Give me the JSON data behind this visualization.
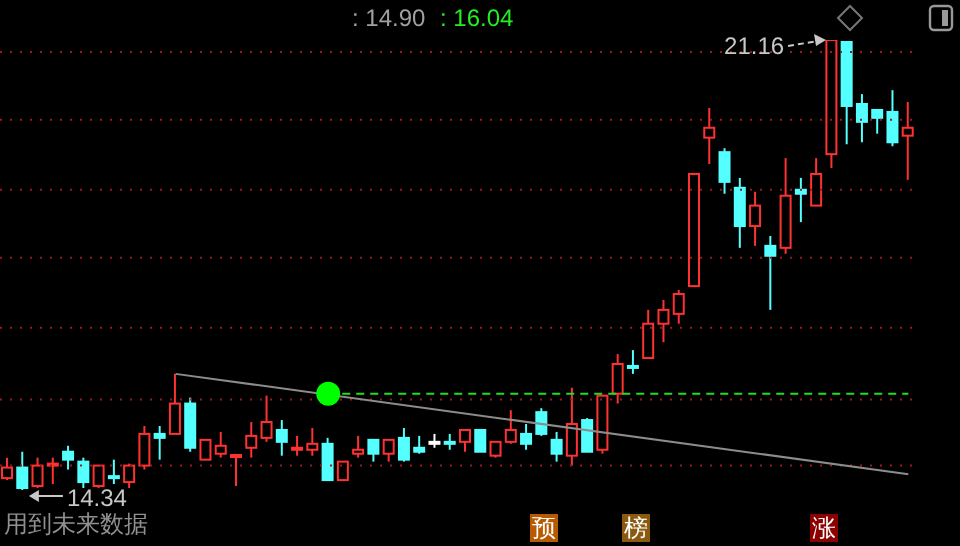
{
  "chart_data": {
    "type": "candlestick",
    "categories": [
      null,
      null,
      null,
      null,
      null,
      null,
      null,
      null,
      null,
      null,
      null,
      null,
      null,
      null,
      null,
      null,
      null,
      null,
      null,
      null,
      null,
      null,
      null,
      null,
      null,
      null,
      null,
      null,
      null,
      null,
      null,
      null,
      null,
      null,
      null,
      null,
      null,
      null,
      null,
      null,
      null,
      null,
      null,
      null,
      null,
      null,
      null,
      null,
      null,
      null,
      null,
      null,
      null,
      null,
      null,
      null,
      null,
      null,
      null,
      null
    ],
    "ohlc": [
      [
        14.52,
        14.83,
        14.49,
        14.68
      ],
      [
        14.68,
        14.92,
        14.34,
        14.37
      ],
      [
        14.4,
        14.83,
        14.37,
        14.71
      ],
      [
        14.71,
        14.83,
        14.43,
        14.74
      ],
      [
        14.92,
        15.01,
        14.65,
        14.8
      ],
      [
        14.77,
        14.83,
        14.37,
        14.46
      ],
      [
        14.4,
        14.71,
        14.37,
        14.71
      ],
      [
        14.55,
        14.8,
        14.43,
        14.52
      ],
      [
        14.46,
        14.74,
        14.37,
        14.71
      ],
      [
        14.71,
        15.31,
        14.65,
        15.19
      ],
      [
        15.19,
        15.31,
        14.8,
        15.13
      ],
      [
        15.19,
        16.1,
        15.19,
        15.65
      ],
      [
        15.65,
        15.74,
        14.92,
        14.98
      ],
      [
        14.8,
        15.1,
        14.8,
        15.1
      ],
      [
        14.89,
        15.22,
        14.83,
        15.01
      ],
      [
        14.86,
        14.87,
        14.4,
        14.87
      ],
      [
        14.98,
        15.37,
        14.83,
        15.16
      ],
      [
        15.13,
        15.77,
        15.07,
        15.37
      ],
      [
        15.25,
        15.4,
        14.86,
        15.07
      ],
      [
        14.95,
        15.16,
        14.86,
        14.98
      ],
      [
        14.95,
        15.28,
        14.86,
        15.04
      ],
      [
        15.04,
        15.13,
        14.49,
        14.49
      ],
      [
        14.49,
        14.77,
        14.49,
        14.77
      ],
      [
        14.89,
        15.16,
        14.83,
        14.95
      ],
      [
        15.1,
        15.1,
        14.77,
        14.89
      ],
      [
        14.89,
        15.1,
        14.77,
        15.1
      ],
      [
        15.13,
        15.28,
        14.77,
        14.8
      ],
      [
        14.98,
        15.16,
        14.89,
        14.92
      ],
      [
        15.07,
        15.19,
        14.98,
        15.07
      ],
      [
        15.07,
        15.19,
        14.95,
        15.04
      ],
      [
        15.07,
        15.25,
        14.92,
        15.25
      ],
      [
        15.25,
        15.25,
        14.92,
        14.92
      ],
      [
        14.86,
        15.07,
        14.83,
        15.07
      ],
      [
        15.07,
        15.55,
        15.04,
        15.25
      ],
      [
        15.19,
        15.34,
        14.95,
        15.04
      ],
      [
        15.52,
        15.58,
        15.16,
        15.19
      ],
      [
        15.1,
        15.22,
        14.77,
        14.89
      ],
      [
        14.86,
        15.89,
        14.71,
        15.34
      ],
      [
        15.4,
        15.43,
        14.92,
        14.92
      ],
      [
        14.95,
        15.77,
        14.89,
        15.77
      ],
      [
        15.8,
        16.4,
        15.65,
        16.25
      ],
      [
        16.22,
        16.46,
        16.1,
        16.19
      ],
      [
        16.34,
        17.07,
        16.34,
        16.86
      ],
      [
        16.86,
        17.22,
        16.58,
        17.07
      ],
      [
        17.01,
        17.37,
        16.86,
        17.31
      ],
      [
        17.43,
        19.13,
        17.43,
        19.13
      ],
      [
        19.68,
        20.13,
        19.28,
        19.83
      ],
      [
        19.46,
        19.52,
        18.83,
        19.01
      ],
      [
        18.92,
        19.07,
        18.01,
        18.34
      ],
      [
        18.34,
        18.86,
        18.04,
        18.65
      ],
      [
        18.04,
        18.19,
        17.07,
        17.89
      ],
      [
        18.01,
        19.37,
        17.92,
        18.8
      ],
      [
        18.89,
        19.07,
        18.4,
        18.83
      ],
      [
        18.65,
        19.37,
        18.65,
        19.13
      ],
      [
        19.43,
        21.16,
        19.22,
        21.16
      ],
      [
        21.13,
        21.13,
        19.58,
        20.16
      ],
      [
        20.19,
        20.34,
        19.61,
        19.92
      ],
      [
        20.1,
        20.1,
        19.74,
        19.98
      ],
      [
        20.07,
        20.4,
        19.55,
        19.61
      ],
      [
        19.71,
        20.22,
        19.04,
        19.83
      ]
    ],
    "colors": [
      "#ff3232",
      "#54ffff",
      "#ff3232",
      "#ff3232",
      "#54ffff",
      "#54ffff",
      "#ff3232",
      "#54ffff",
      "#ff3232",
      "#ff3232",
      "#54ffff",
      "#ff3232",
      "#54ffff",
      "#ff3232",
      "#ff3232",
      "#ff3232",
      "#ff3232",
      "#ff3232",
      "#54ffff",
      "#ff3232",
      "#ff3232",
      "#54ffff",
      "#ff3232",
      "#ff3232",
      "#54ffff",
      "#ff3232",
      "#54ffff",
      "#54ffff",
      "#ffffff",
      "#54ffff",
      "#ff3232",
      "#54ffff",
      "#ff3232",
      "#ff3232",
      "#54ffff",
      "#54ffff",
      "#54ffff",
      "#ff3232",
      "#54ffff",
      "#ff3232",
      "#ff3232",
      "#54ffff",
      "#ff3232",
      "#ff3232",
      "#ff3232",
      "#ff3232",
      "#ff3232",
      "#54ffff",
      "#54ffff",
      "#ff3232",
      "#54ffff",
      "#ff3232",
      "#54ffff",
      "#ff3232",
      "#ff3232",
      "#54ffff",
      "#54ffff",
      "#54ffff",
      "#54ffff",
      "#ff3232"
    ],
    "series": [
      {
        "type": "line",
        "color": "#8c8c8c",
        "values": [
          null,
          null,
          null,
          null,
          null,
          null,
          null,
          null,
          null,
          null,
          null,
          16.1,
          null,
          null,
          null,
          null,
          null,
          null,
          null,
          null,
          null,
          null,
          null,
          null,
          null,
          null,
          null,
          null,
          null,
          null,
          null,
          null,
          null,
          null,
          null,
          null,
          null,
          null,
          null,
          null,
          null,
          null,
          null,
          null,
          null,
          null,
          null,
          null,
          null,
          null,
          null,
          null,
          null,
          null,
          null,
          null,
          null,
          null,
          null,
          14.58
        ]
      },
      {
        "type": "line",
        "color": "#22dd22",
        "line_style": "dashed",
        "values": [
          null,
          null,
          null,
          null,
          null,
          null,
          null,
          null,
          null,
          null,
          null,
          null,
          null,
          null,
          null,
          null,
          null,
          null,
          null,
          null,
          null,
          15.8,
          null,
          null,
          null,
          null,
          null,
          null,
          null,
          null,
          null,
          null,
          null,
          null,
          null,
          null,
          null,
          null,
          null,
          null,
          null,
          null,
          null,
          null,
          null,
          null,
          null,
          null,
          null,
          null,
          null,
          null,
          null,
          null,
          null,
          null,
          null,
          null,
          null,
          15.8
        ]
      },
      {
        "type": "scatter",
        "color": "#00ff00",
        "marker": "circle",
        "values": [
          null,
          null,
          null,
          null,
          null,
          null,
          null,
          null,
          null,
          null,
          null,
          null,
          null,
          null,
          null,
          null,
          null,
          null,
          null,
          null,
          null,
          15.8,
          null,
          null,
          null,
          null,
          null,
          null,
          null,
          null,
          null,
          null,
          null,
          null,
          null,
          null,
          null,
          null,
          null,
          null,
          null,
          null,
          null,
          null,
          null,
          null,
          null,
          null,
          null,
          null,
          null,
          null,
          null,
          null,
          null,
          null,
          null,
          null,
          null,
          null
        ]
      }
    ],
    "yticks": [
      {
        "value": 20.98,
        "label": null
      },
      {
        "value": 19.95,
        "label": null
      },
      {
        "value": 18.89,
        "label": null
      },
      {
        "value": 17.86,
        "label": null
      },
      {
        "value": 16.8,
        "label": null
      },
      {
        "value": 15.71,
        "label": null
      },
      {
        "value": 14.71,
        "label": null
      }
    ],
    "grid": "y",
    "tick_labels": false,
    "annotations": [
      ": 14.90",
      ": 16.04",
      "21.16",
      "14.34",
      "用到未来数据",
      "预",
      "榜",
      "涨"
    ]
  }
}
